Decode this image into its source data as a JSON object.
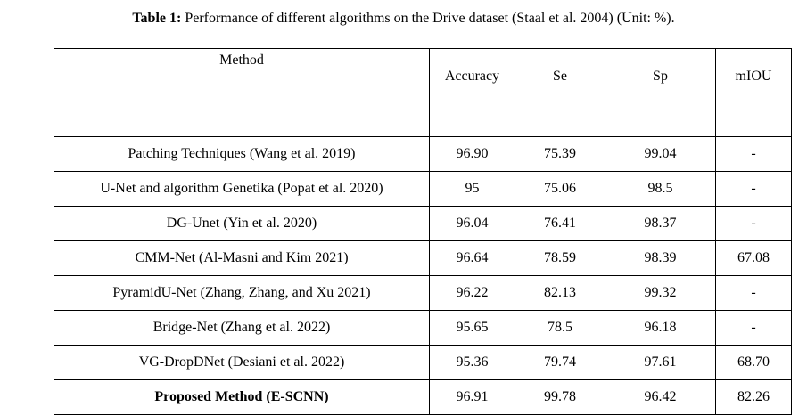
{
  "caption": {
    "label": "Table 1:",
    "text": " Performance of different algorithms on the Drive dataset (Staal et al. 2004) (Unit: %)."
  },
  "table": {
    "headers": [
      "Method",
      "Accuracy",
      "Se",
      "Sp",
      "mIOU"
    ],
    "rows": [
      {
        "method": "Patching Techniques (Wang et al. 2019)",
        "accuracy": "96.90",
        "se": "75.39",
        "sp": "99.04",
        "miou": "-"
      },
      {
        "method": "U-Net and algorithm Genetika (Popat et al. 2020)",
        "accuracy": "95",
        "se": "75.06",
        "sp": "98.5",
        "miou": "-"
      },
      {
        "method": "DG-Unet (Yin et al. 2020)",
        "accuracy": "96.04",
        "se": "76.41",
        "sp": "98.37",
        "miou": "-"
      },
      {
        "method": "CMM-Net (Al-Masni and Kim 2021)",
        "accuracy": "96.64",
        "se": "78.59",
        "sp": "98.39",
        "miou": "67.08"
      },
      {
        "method": "PyramidU-Net (Zhang, Zhang, and Xu 2021)",
        "accuracy": "96.22",
        "se": "82.13",
        "sp": "99.32",
        "miou": "-"
      },
      {
        "method": "Bridge-Net (Zhang et al. 2022)",
        "accuracy": "95.65",
        "se": "78.5",
        "sp": "96.18",
        "miou": "-"
      },
      {
        "method": "VG-DropDNet (Desiani et al. 2022)",
        "accuracy": "95.36",
        "se": "79.74",
        "sp": "97.61",
        "miou": "68.70"
      },
      {
        "method": "Proposed Method (E-SCNN)",
        "accuracy": "96.91",
        "se": "99.78",
        "sp": "96.42",
        "miou": "82.26"
      }
    ]
  }
}
